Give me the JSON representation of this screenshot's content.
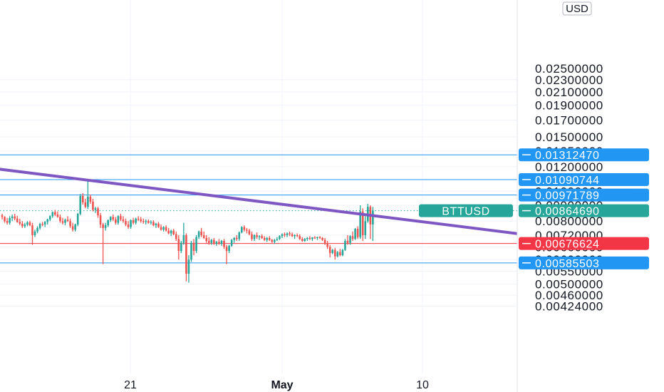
{
  "chart_data": {
    "type": "candlestick",
    "symbol": "BTTUSD",
    "currency": "USD",
    "y_scale": "log",
    "ylim": [
      0.0041,
      0.0245
    ],
    "y_ticks": [
      "0.02300000",
      "0.02100000",
      "0.01900000",
      "0.01700000",
      "0.01500000",
      "0.01350000",
      "0.01200000",
      "0.01000000",
      "0.00900000",
      "0.00800000",
      "0.00720000",
      "0.00660000",
      "0.00600000",
      "0.00550000",
      "0.00500000",
      "0.00460000",
      "0.00424000"
    ],
    "top_tick_partial": "0.02500000",
    "x_ticks": [
      {
        "label": "21",
        "bold": false
      },
      {
        "label": "May",
        "bold": true
      },
      {
        "label": "10",
        "bold": false
      }
    ],
    "grid": true,
    "colors": {
      "up": "#26a69a",
      "down": "#ef5350",
      "trendline": "#7e57c2",
      "horizontal_line": "#2196f3",
      "red_line": "#f23645",
      "price_line": "#26a69a",
      "grid": "#f0f3fa",
      "axis_text": "#131722"
    },
    "horizontal_lines": [
      {
        "label": "0.01312470",
        "value": 0.0131247,
        "color": "#2196f3"
      },
      {
        "label": "0.01090744",
        "value": 0.01090744,
        "color": "#2196f3"
      },
      {
        "label": "0.00971789",
        "value": 0.00971789,
        "color": "#2196f3"
      },
      {
        "label": "0.00676624",
        "value": 0.00676624,
        "color": "#f23645"
      },
      {
        "label": "0.00585503",
        "value": 0.00585503,
        "color": "#2196f3"
      }
    ],
    "last_price": {
      "symbol": "BTTUSD",
      "label": "0.00864690",
      "value": 0.0086469,
      "color": "#26a69a"
    },
    "trendline": {
      "from": {
        "bar": -5,
        "value": 0.0119
      },
      "to": {
        "bar": 242,
        "value": 0.00667
      }
    },
    "candles": [
      [
        0.00835,
        0.00845,
        0.0081,
        0.00825
      ],
      [
        0.00825,
        0.0083,
        0.0079,
        0.008
      ],
      [
        0.008,
        0.0082,
        0.0078,
        0.0079
      ],
      [
        0.0079,
        0.0083,
        0.0078,
        0.00818
      ],
      [
        0.00818,
        0.0084,
        0.008,
        0.00828
      ],
      [
        0.00828,
        0.00845,
        0.00805,
        0.00815
      ],
      [
        0.00815,
        0.00832,
        0.0079,
        0.00795
      ],
      [
        0.00795,
        0.00815,
        0.00775,
        0.00785
      ],
      [
        0.00785,
        0.008,
        0.0076,
        0.0077
      ],
      [
        0.0077,
        0.0079,
        0.0076,
        0.0078
      ],
      [
        0.0078,
        0.008,
        0.0077,
        0.00792
      ],
      [
        0.00792,
        0.00802,
        0.0077,
        0.00775
      ],
      [
        0.00775,
        0.0079,
        0.0067,
        0.0072
      ],
      [
        0.0072,
        0.0075,
        0.0071,
        0.0074
      ],
      [
        0.0074,
        0.0077,
        0.0073,
        0.0076
      ],
      [
        0.0076,
        0.0079,
        0.0075,
        0.00783
      ],
      [
        0.00783,
        0.00795,
        0.0077,
        0.0078
      ],
      [
        0.0078,
        0.008,
        0.00765,
        0.00795
      ],
      [
        0.00795,
        0.00815,
        0.0078,
        0.0081
      ],
      [
        0.0081,
        0.00835,
        0.008,
        0.0083
      ],
      [
        0.0083,
        0.0086,
        0.0082,
        0.00855
      ],
      [
        0.00855,
        0.0087,
        0.0083,
        0.0084
      ],
      [
        0.0084,
        0.0086,
        0.0082,
        0.00825
      ],
      [
        0.00825,
        0.0084,
        0.0079,
        0.008
      ],
      [
        0.008,
        0.0082,
        0.0078,
        0.0079
      ],
      [
        0.0079,
        0.00815,
        0.00775,
        0.00808
      ],
      [
        0.00808,
        0.0083,
        0.00795,
        0.008
      ],
      [
        0.008,
        0.00815,
        0.0076,
        0.0077
      ],
      [
        0.0077,
        0.0079,
        0.0074,
        0.0075
      ],
      [
        0.0075,
        0.00785,
        0.0074,
        0.0078
      ],
      [
        0.0078,
        0.0085,
        0.0077,
        0.00845
      ],
      [
        0.00845,
        0.0098,
        0.00835,
        0.00965
      ],
      [
        0.00965,
        0.00985,
        0.00905,
        0.0092
      ],
      [
        0.0092,
        0.00945,
        0.0088,
        0.0089
      ],
      [
        0.0089,
        0.0109,
        0.00875,
        0.0096
      ],
      [
        0.0096,
        0.00975,
        0.0091,
        0.00925
      ],
      [
        0.00925,
        0.00945,
        0.0086,
        0.0087
      ],
      [
        0.0087,
        0.0089,
        0.0085,
        0.0088
      ],
      [
        0.0088,
        0.0089,
        0.0082,
        0.00835
      ],
      [
        0.00835,
        0.0085,
        0.0076,
        0.0078
      ],
      [
        0.0078,
        0.0079,
        0.0058,
        0.0076
      ],
      [
        0.0076,
        0.0079,
        0.00745,
        0.00775
      ],
      [
        0.00775,
        0.0081,
        0.00765,
        0.00805
      ],
      [
        0.00805,
        0.0083,
        0.00795,
        0.00825
      ],
      [
        0.00825,
        0.0084,
        0.008,
        0.0081
      ],
      [
        0.0081,
        0.00825,
        0.0078,
        0.0079
      ],
      [
        0.0079,
        0.00835,
        0.0078,
        0.0083
      ],
      [
        0.0083,
        0.00845,
        0.008,
        0.0081
      ],
      [
        0.0081,
        0.0083,
        0.0079,
        0.008
      ],
      [
        0.008,
        0.00815,
        0.0077,
        0.0078
      ],
      [
        0.0078,
        0.008,
        0.00755,
        0.00765
      ],
      [
        0.00765,
        0.0081,
        0.00755,
        0.00805
      ],
      [
        0.00805,
        0.0082,
        0.0078,
        0.0079
      ],
      [
        0.0079,
        0.0082,
        0.0078,
        0.00815
      ],
      [
        0.00815,
        0.0083,
        0.008,
        0.0081
      ],
      [
        0.0081,
        0.00825,
        0.0079,
        0.008
      ],
      [
        0.008,
        0.00815,
        0.00785,
        0.00795
      ],
      [
        0.00795,
        0.0081,
        0.0078,
        0.008
      ],
      [
        0.008,
        0.0081,
        0.00785,
        0.0079
      ],
      [
        0.0079,
        0.00805,
        0.0078,
        0.00795
      ],
      [
        0.00795,
        0.00805,
        0.0077,
        0.00775
      ],
      [
        0.00775,
        0.0079,
        0.0076,
        0.00785
      ],
      [
        0.00785,
        0.00795,
        0.0076,
        0.00765
      ],
      [
        0.00765,
        0.0078,
        0.00745,
        0.0075
      ],
      [
        0.0075,
        0.0077,
        0.0074,
        0.00765
      ],
      [
        0.00765,
        0.00775,
        0.0074,
        0.00745
      ],
      [
        0.00745,
        0.0076,
        0.00725,
        0.0073
      ],
      [
        0.0073,
        0.0075,
        0.00715,
        0.00745
      ],
      [
        0.00745,
        0.00755,
        0.0072,
        0.00725
      ],
      [
        0.00725,
        0.0074,
        0.0069,
        0.007
      ],
      [
        0.007,
        0.0072,
        0.006,
        0.0064
      ],
      [
        0.0064,
        0.0069,
        0.0063,
        0.0068
      ],
      [
        0.0068,
        0.0079,
        0.0067,
        0.0072
      ],
      [
        0.0072,
        0.0073,
        0.0051,
        0.0054
      ],
      [
        0.0054,
        0.0062,
        0.00505,
        0.006
      ],
      [
        0.006,
        0.0069,
        0.0059,
        0.0068
      ],
      [
        0.0068,
        0.007,
        0.0062,
        0.0064
      ],
      [
        0.0064,
        0.0072,
        0.0063,
        0.0071
      ],
      [
        0.0071,
        0.00745,
        0.007,
        0.0074
      ],
      [
        0.0074,
        0.0076,
        0.0071,
        0.0072
      ],
      [
        0.0072,
        0.0074,
        0.007,
        0.00705
      ],
      [
        0.00705,
        0.0072,
        0.0068,
        0.0069
      ],
      [
        0.0069,
        0.0071,
        0.0067,
        0.0068
      ],
      [
        0.0068,
        0.007,
        0.0067,
        0.00695
      ],
      [
        0.00695,
        0.00705,
        0.0067,
        0.00675
      ],
      [
        0.00675,
        0.0069,
        0.00665,
        0.00685
      ],
      [
        0.00685,
        0.007,
        0.0067,
        0.00675
      ],
      [
        0.00675,
        0.00695,
        0.00665,
        0.0069
      ],
      [
        0.0069,
        0.007,
        0.0065,
        0.0066
      ],
      [
        0.0066,
        0.0067,
        0.0058,
        0.0064
      ],
      [
        0.0064,
        0.0067,
        0.0063,
        0.00665
      ],
      [
        0.00665,
        0.007,
        0.0066,
        0.00695
      ],
      [
        0.00695,
        0.0071,
        0.0068,
        0.00705
      ],
      [
        0.00705,
        0.0072,
        0.0069,
        0.007
      ],
      [
        0.007,
        0.0074,
        0.0069,
        0.00735
      ],
      [
        0.00735,
        0.0077,
        0.0073,
        0.00765
      ],
      [
        0.00765,
        0.00775,
        0.0074,
        0.0075
      ],
      [
        0.0075,
        0.0076,
        0.0073,
        0.00745
      ],
      [
        0.00745,
        0.00755,
        0.0072,
        0.00725
      ],
      [
        0.00725,
        0.0074,
        0.0069,
        0.007
      ],
      [
        0.007,
        0.00725,
        0.0069,
        0.0072
      ],
      [
        0.0072,
        0.00735,
        0.007,
        0.0071
      ],
      [
        0.0071,
        0.0072,
        0.00695,
        0.00715
      ],
      [
        0.00715,
        0.00725,
        0.007,
        0.00705
      ],
      [
        0.00705,
        0.00715,
        0.0069,
        0.00695
      ],
      [
        0.00695,
        0.0071,
        0.00685,
        0.00705
      ],
      [
        0.00705,
        0.00715,
        0.0069,
        0.00695
      ],
      [
        0.00695,
        0.007,
        0.0068,
        0.00685
      ],
      [
        0.00685,
        0.007,
        0.00675,
        0.00695
      ],
      [
        0.00695,
        0.0071,
        0.0069,
        0.007
      ],
      [
        0.007,
        0.0072,
        0.00695,
        0.00715
      ],
      [
        0.00715,
        0.0073,
        0.00705,
        0.00725
      ],
      [
        0.00725,
        0.00735,
        0.0071,
        0.0072
      ],
      [
        0.0072,
        0.00735,
        0.0071,
        0.0073
      ],
      [
        0.0073,
        0.0074,
        0.00715,
        0.00725
      ],
      [
        0.00725,
        0.00735,
        0.0071,
        0.00715
      ],
      [
        0.00715,
        0.00725,
        0.007,
        0.0072
      ],
      [
        0.0072,
        0.0073,
        0.0071,
        0.00715
      ],
      [
        0.00715,
        0.00725,
        0.00695,
        0.007
      ],
      [
        0.007,
        0.0071,
        0.00685,
        0.0069
      ],
      [
        0.0069,
        0.00705,
        0.00685,
        0.007
      ],
      [
        0.007,
        0.0071,
        0.0069,
        0.00705
      ],
      [
        0.00705,
        0.00715,
        0.00695,
        0.007
      ],
      [
        0.007,
        0.0071,
        0.0069,
        0.00708
      ],
      [
        0.00708,
        0.00715,
        0.007,
        0.00705
      ],
      [
        0.00705,
        0.00712,
        0.00695,
        0.0071
      ],
      [
        0.0071,
        0.00715,
        0.007,
        0.00705
      ],
      [
        0.00705,
        0.0071,
        0.0069,
        0.00695
      ],
      [
        0.00695,
        0.00705,
        0.0067,
        0.00675
      ],
      [
        0.00675,
        0.0069,
        0.0065,
        0.0066
      ],
      [
        0.0066,
        0.0067,
        0.0061,
        0.0063
      ],
      [
        0.0063,
        0.0065,
        0.00625,
        0.00645
      ],
      [
        0.00645,
        0.00655,
        0.006,
        0.00615
      ],
      [
        0.00615,
        0.0064,
        0.0061,
        0.00635
      ],
      [
        0.00635,
        0.0065,
        0.00615,
        0.0062
      ],
      [
        0.0062,
        0.0065,
        0.00615,
        0.00645
      ],
      [
        0.00645,
        0.007,
        0.0064,
        0.0069
      ],
      [
        0.0069,
        0.0072,
        0.0067,
        0.0068
      ],
      [
        0.0068,
        0.0072,
        0.0067,
        0.00715
      ],
      [
        0.00715,
        0.0074,
        0.0069,
        0.007
      ],
      [
        0.007,
        0.0076,
        0.00695,
        0.00755
      ],
      [
        0.00755,
        0.0077,
        0.007,
        0.0071
      ],
      [
        0.0071,
        0.009,
        0.007,
        0.0086
      ],
      [
        0.0086,
        0.0088,
        0.0069,
        0.0072
      ],
      [
        0.0072,
        0.0083,
        0.007,
        0.008
      ],
      [
        0.008,
        0.0091,
        0.0079,
        0.0089
      ],
      [
        0.0089,
        0.009,
        0.007,
        0.0078
      ],
      [
        0.0078,
        0.0089,
        0.0069,
        0.00865
      ]
    ]
  }
}
